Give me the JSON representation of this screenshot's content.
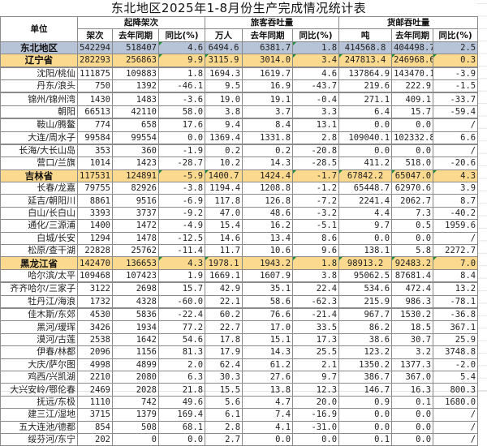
{
  "title": "东北地区2025年1-8月份生产完成情况统计表",
  "headers": {
    "unit": "单位",
    "groups": [
      "起降架次",
      "旅客吞吐量",
      "货邮吞吐量"
    ],
    "sub": [
      "架次",
      "去年同期",
      "同比(%)",
      "万人",
      "去年同期",
      "同比(%)",
      "吨",
      "去年同期",
      "同比(%)"
    ]
  },
  "rows": [
    {
      "type": "region",
      "name": "东北地区",
      "v": [
        "542294",
        "518407",
        "4.6",
        "6494.6",
        "6381.7",
        "1.8",
        "414568.8",
        "404498.7",
        "2.5"
      ]
    },
    {
      "type": "prov",
      "name": "辽宁省",
      "v": [
        "282293",
        "256863",
        "9.9",
        "3115.9",
        "3014.0",
        "3.4",
        "247813.4",
        "246968.6",
        "0.3"
      ]
    },
    {
      "type": "city",
      "name": "沈阳/桃仙",
      "v": [
        "111875",
        "109883",
        "1.8",
        "1694.3",
        "1619.7",
        "4.6",
        "137864.9",
        "143470.1",
        "-3.9"
      ]
    },
    {
      "type": "city",
      "name": "丹东/浪头",
      "v": [
        "750",
        "1392",
        "-46.1",
        "9.5",
        "16.9",
        "-43.7",
        "219.6",
        "222.9",
        "-1.5"
      ]
    },
    {
      "type": "city",
      "name": "锦州/锦州湾",
      "v": [
        "1430",
        "1483",
        "-3.6",
        "19.0",
        "19.1",
        "-0.4",
        "271.1",
        "409.1",
        "-33.7"
      ]
    },
    {
      "type": "city",
      "name": "朝阳",
      "v": [
        "66513",
        "42110",
        "58.0",
        "3.8",
        "3.7",
        "3.3",
        "6.4",
        "15.7",
        "-59.4"
      ]
    },
    {
      "type": "city",
      "name": "鞍山/腾鳌",
      "v": [
        "774",
        "658",
        "17.6",
        "9.4",
        "8.4",
        "13.1",
        "0.0",
        "0.0",
        "/"
      ]
    },
    {
      "type": "city",
      "name": "大连/周水子",
      "v": [
        "99584",
        "99554",
        "0.0",
        "1369.4",
        "1331.8",
        "2.8",
        "109040.1",
        "102332.8",
        "6.6"
      ]
    },
    {
      "type": "city",
      "name": "长海/大长山岛",
      "v": [
        "353",
        "360",
        "-1.9",
        "0.2",
        "0.2",
        "-20.8",
        "0.0",
        "0.0",
        "/"
      ]
    },
    {
      "type": "city",
      "name": "营口/兰旗",
      "v": [
        "1014",
        "1423",
        "-28.7",
        "10.2",
        "14.3",
        "-28.5",
        "411.2",
        "518.0",
        "-20.6"
      ]
    },
    {
      "type": "prov",
      "name": "吉林省",
      "v": [
        "117531",
        "124891",
        "-5.9",
        "1400.7",
        "1424.4",
        "-1.7",
        "67842.2",
        "65047.0",
        "4.3"
      ]
    },
    {
      "type": "city",
      "name": "长春/龙嘉",
      "v": [
        "79755",
        "82926",
        "-3.8",
        "1194.4",
        "1208.8",
        "-1.2",
        "65448.7",
        "62970.6",
        "3.9"
      ]
    },
    {
      "type": "city",
      "name": "延吉/朝阳川",
      "v": [
        "8861",
        "9516",
        "-6.9",
        "117.8",
        "126.8",
        "-7.2",
        "2241.4",
        "2062.7",
        "8.7"
      ]
    },
    {
      "type": "city",
      "name": "白山/长白山",
      "v": [
        "3393",
        "3737",
        "-9.2",
        "47.0",
        "48.6",
        "-3.2",
        "4.4",
        "7.3",
        "-40.2"
      ]
    },
    {
      "type": "city",
      "name": "通化/三源浦",
      "v": [
        "1400",
        "1472",
        "-4.9",
        "15.4",
        "16.2",
        "-5.1",
        "9.7",
        "0.5",
        "1959.6"
      ]
    },
    {
      "type": "city",
      "name": "白城/长安",
      "v": [
        "1294",
        "1478",
        "-12.5",
        "14.6",
        "13.4",
        "8.6",
        "0.0",
        "0.0",
        "/"
      ]
    },
    {
      "type": "city",
      "name": "松原/查干湖",
      "v": [
        "22828",
        "25762",
        "-11.4",
        "11.7",
        "10.6",
        "9.6",
        "138.1",
        "5.8",
        "2272.7"
      ]
    },
    {
      "type": "prov",
      "name": "黑龙江省",
      "v": [
        "142470",
        "136653",
        "4.3",
        "1978.1",
        "1943.2",
        "1.8",
        "98913.2",
        "92483.2",
        "7.0"
      ]
    },
    {
      "type": "city",
      "name": "哈尔滨/太平",
      "v": [
        "109468",
        "107423",
        "1.9",
        "1669.1",
        "1607.9",
        "3.8",
        "95062.5",
        "87681.4",
        "8.4"
      ]
    },
    {
      "type": "city",
      "name": "齐齐哈尔/三家子",
      "v": [
        "3122",
        "2698",
        "15.7",
        "42.9",
        "35.1",
        "22.4",
        "534.6",
        "472.4",
        "13.2"
      ]
    },
    {
      "type": "city",
      "name": "牡丹江/海浪",
      "v": [
        "1732",
        "4328",
        "-60.0",
        "22.1",
        "58.6",
        "-62.3",
        "215.9",
        "986.3",
        "-78.1"
      ]
    },
    {
      "type": "city",
      "name": "佳木斯/东郊",
      "v": [
        "4530",
        "5836",
        "-22.4",
        "60.2",
        "76.6",
        "-21.4",
        "967.7",
        "1530.2",
        "-36.8"
      ]
    },
    {
      "type": "city",
      "name": "黑河/瑷珲",
      "v": [
        "3426",
        "1934",
        "77.2",
        "22.7",
        "17.0",
        "33.5",
        "86.2",
        "18.5",
        "367.1"
      ]
    },
    {
      "type": "city",
      "name": "漠河/古莲",
      "v": [
        "2538",
        "1642",
        "54.6",
        "17.8",
        "15.1",
        "17.3",
        "38.6",
        "30.7",
        "25.9"
      ]
    },
    {
      "type": "city",
      "name": "伊春/林都",
      "v": [
        "2096",
        "1156",
        "81.3",
        "17.9",
        "14.3",
        "25.5",
        "123.2",
        "3.2",
        "3748.8"
      ]
    },
    {
      "type": "city",
      "name": "大庆/萨尔图",
      "v": [
        "4998",
        "4899",
        "2.0",
        "62.4",
        "61.2",
        "2.1",
        "1350.2",
        "1377.3",
        "-2.0"
      ]
    },
    {
      "type": "city",
      "name": "鸡西/兴凯湖",
      "v": [
        "2210",
        "2080",
        "6.3",
        "30.3",
        "27.6",
        "9.7",
        "386.7",
        "367.0",
        "5.4"
      ]
    },
    {
      "type": "city",
      "name": "大兴安岭/鄂伦春",
      "v": [
        "2469",
        "2028",
        "21.8",
        "15.5",
        "13.8",
        "12.3",
        "146.7",
        "16.3",
        "800.3"
      ]
    },
    {
      "type": "city",
      "name": "抚远/东极",
      "v": [
        "1110",
        "742",
        "49.6",
        "5.6",
        "4.7",
        "20.0",
        "0.9",
        "0.1",
        "1680.0"
      ]
    },
    {
      "type": "city",
      "name": "建三江/湿地",
      "v": [
        "3715",
        "1379",
        "169.4",
        "6.1",
        "7.4",
        "-16.9",
        "0.0",
        "0.0",
        "/"
      ]
    },
    {
      "type": "city",
      "name": "五大连池/德都",
      "v": [
        "854",
        "508",
        "68.1",
        "2.8",
        "4.1",
        "-31.0",
        "0.0",
        "0.0",
        "/"
      ]
    },
    {
      "type": "city",
      "name": "绥芬河/东宁",
      "v": [
        "202",
        "0",
        "0.0",
        "2.7",
        "0.0",
        "0.0",
        "0.1",
        "0.0",
        "/"
      ]
    }
  ]
}
